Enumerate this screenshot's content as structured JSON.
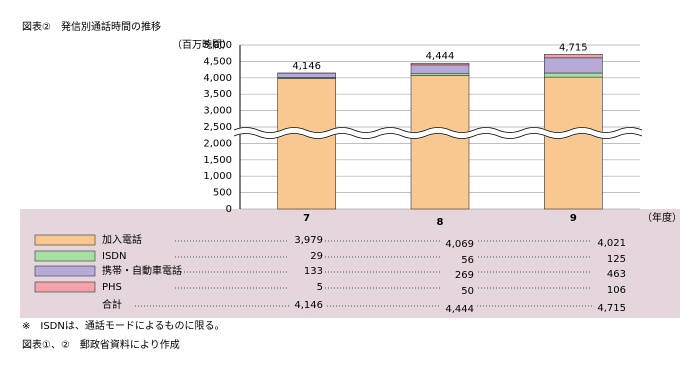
{
  "chart_data": {
    "type": "bar",
    "stacked": true,
    "title": "図表②　発信別通話時間の推移",
    "y_label": "（百万時間）",
    "x_label": "（年度）",
    "categories": [
      "7",
      "8",
      "9"
    ],
    "series": [
      {
        "name": "加入電話",
        "color": "#f9c890",
        "values": [
          3979,
          4069,
          4021
        ],
        "value_labels": [
          "3,979",
          "4,069",
          "4,021"
        ]
      },
      {
        "name": "ISDN",
        "color": "#a6e0a2",
        "values": [
          29,
          56,
          125
        ]
      },
      {
        "name": "携帯・自動車電話",
        "color": "#b8aad8",
        "values": [
          133,
          269,
          463
        ]
      },
      {
        "name": "PHS",
        "color": "#f4a3aa",
        "values": [
          5,
          50,
          106
        ]
      }
    ],
    "totals": {
      "name": "合計",
      "values": [
        4146,
        4444,
        4715
      ],
      "value_labels": [
        "4,146",
        "4,444",
        "4,715"
      ]
    },
    "ylim": [
      0,
      5000
    ],
    "yticks": [
      0,
      500,
      {
        "value": 1000,
        "label": "1,000"
      },
      {
        "value": 1500,
        "label": "1,500"
      },
      {
        "value": 2000,
        "label": "2,000"
      },
      {
        "value": 2500,
        "label": "2,500"
      },
      {
        "value": 3000,
        "label": "3,000"
      },
      {
        "value": 3500,
        "label": "3,500"
      },
      {
        "value": 4000,
        "label": "4,000"
      },
      {
        "value": 4500,
        "label": "4,500"
      },
      {
        "value": 5000,
        "label": "5,000"
      }
    ],
    "grid": true,
    "notes": [
      "※　ISDNは、通話モードによるものに限る。",
      "図表①、②　郵政省資料により作成"
    ]
  }
}
